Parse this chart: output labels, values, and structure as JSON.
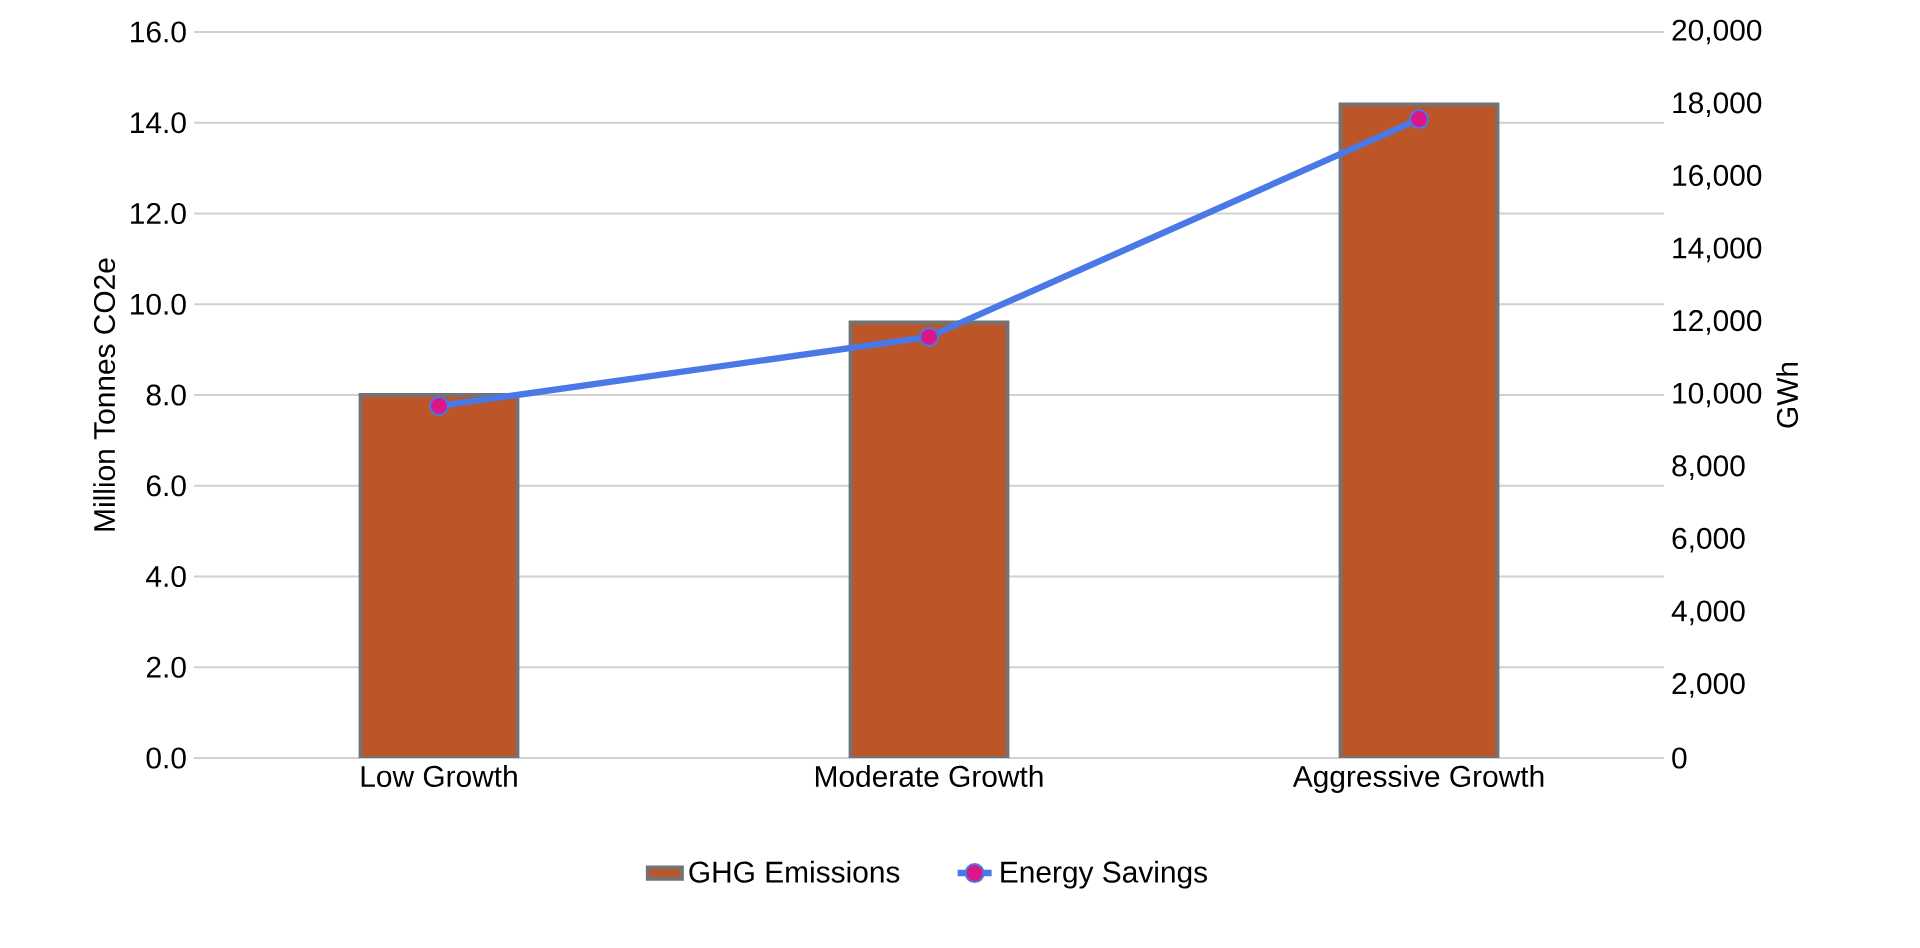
{
  "chart_data": {
    "type": "bar",
    "categories": [
      "Low Growth",
      "Moderate Growth",
      "Aggressive Growth"
    ],
    "series": [
      {
        "name": "GHG Emissions",
        "color": "#bc5628",
        "values": [
          8.0,
          9.6,
          14.4
        ]
      },
      {
        "name": "Energy Savings",
        "type": "line",
        "axis": "y2",
        "color": "#4a78e6",
        "values": [
          9700,
          11600,
          17600
        ]
      }
    ],
    "ylabel": "Million Tonnes CO2e",
    "y2label": "GWh",
    "ylim": [
      0,
      16
    ],
    "yticks": [
      {
        "value": 0,
        "label": "0.0"
      },
      {
        "value": 2,
        "label": "2.0"
      },
      {
        "value": 4,
        "label": "4.0"
      },
      {
        "value": 6,
        "label": "6.0"
      },
      {
        "value": 8,
        "label": "8.0"
      },
      {
        "value": 10,
        "label": "10.0"
      },
      {
        "value": 12,
        "label": "12.0"
      },
      {
        "value": 14,
        "label": "14.0"
      },
      {
        "value": 16,
        "label": "16.0"
      }
    ],
    "y2lim": [
      0,
      20000
    ],
    "y2ticks": [
      0,
      {
        "value": 2000,
        "label": "2,000"
      },
      {
        "value": 4000,
        "label": "4,000"
      },
      {
        "value": 6000,
        "label": "6,000"
      },
      {
        "value": 8000,
        "label": "8,000"
      },
      {
        "value": 10000,
        "label": "10,000"
      },
      {
        "value": 12000,
        "label": "12,000"
      },
      {
        "value": 14000,
        "label": "14,000"
      },
      {
        "value": 16000,
        "label": "16,000"
      },
      {
        "value": 18000,
        "label": "18,000"
      },
      {
        "value": 20000,
        "label": "20,000"
      }
    ],
    "grid": "y",
    "legend": "bottom",
    "marker": "circle"
  }
}
